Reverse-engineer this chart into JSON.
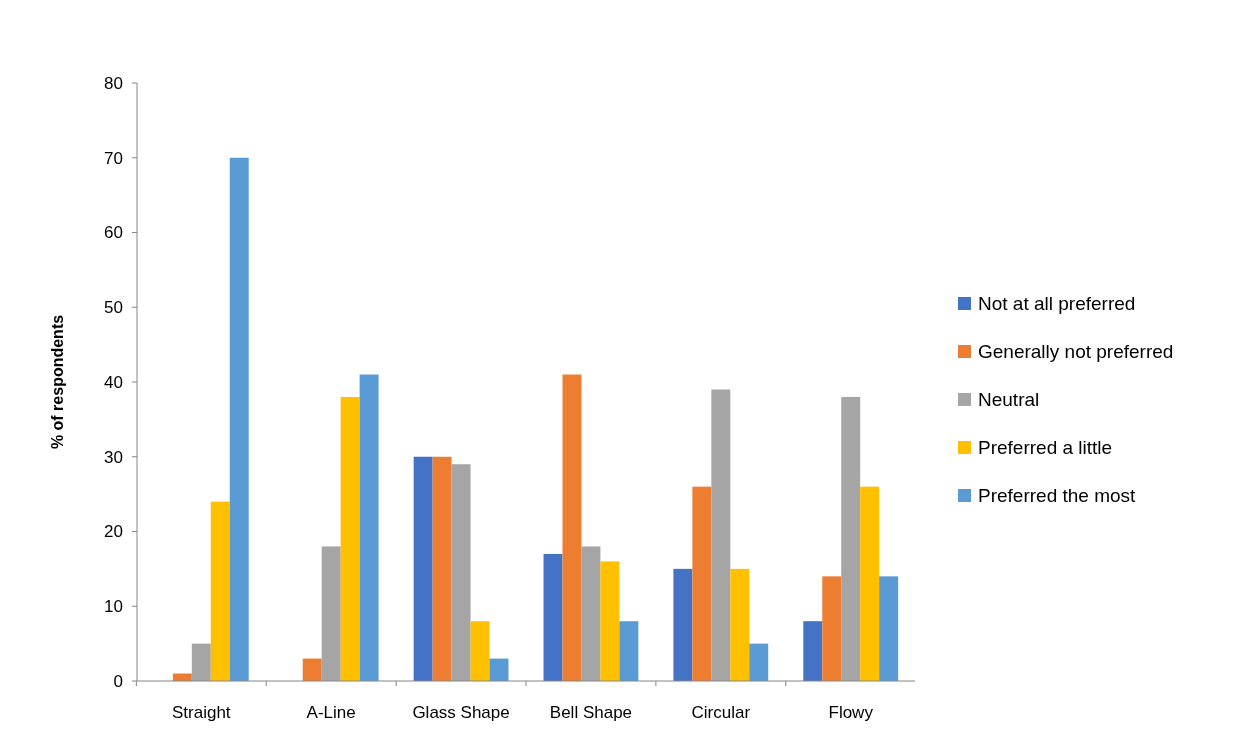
{
  "chart_data": {
    "type": "bar",
    "ylabel": "% of respondents",
    "categories": [
      "Straight",
      "A-Line",
      "Glass Shape",
      "Bell Shape",
      "Circular",
      "Flowy"
    ],
    "series": [
      {
        "name": "Not at all preferred",
        "color": "#4472c4",
        "values": [
          0,
          0,
          30,
          17,
          15,
          8
        ]
      },
      {
        "name": "Generally not preferred",
        "color": "#ed7d31",
        "values": [
          1,
          3,
          30,
          41,
          26,
          14
        ]
      },
      {
        "name": "Neutral",
        "color": "#a5a5a5",
        "values": [
          5,
          18,
          29,
          18,
          39,
          38
        ]
      },
      {
        "name": "Preferred a little",
        "color": "#ffc000",
        "values": [
          24,
          38,
          8,
          16,
          15,
          26
        ]
      },
      {
        "name": "Preferred the most",
        "color": "#5b9bd5",
        "values": [
          70,
          41,
          3,
          8,
          5,
          14
        ]
      }
    ],
    "ylim": [
      0,
      80
    ],
    "yticks": [
      0,
      10,
      20,
      30,
      40,
      50,
      60,
      70,
      80
    ],
    "grid": false,
    "legend": "right"
  }
}
